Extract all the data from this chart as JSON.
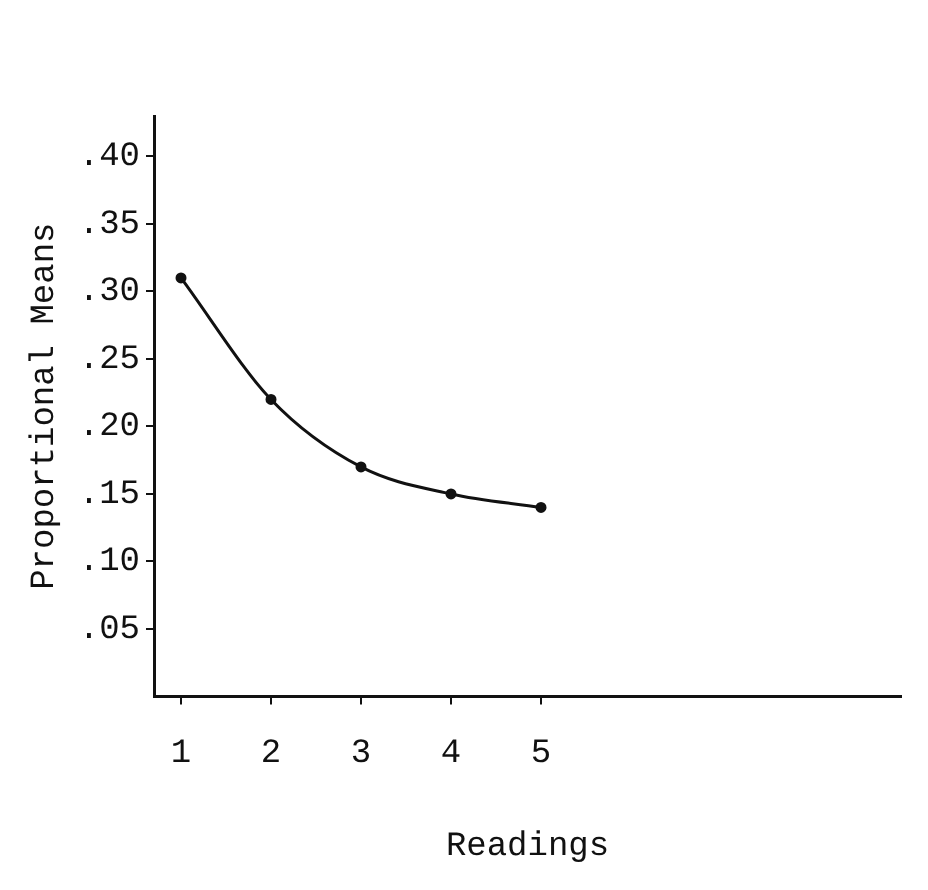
{
  "chart_data": {
    "type": "line",
    "xlabel": "Readings",
    "ylabel": "Proportional Means",
    "x": [
      1,
      2,
      3,
      4,
      5
    ],
    "series": [
      {
        "color": "#111111",
        "values": [
          0.31,
          0.22,
          0.17,
          0.15,
          0.14
        ]
      }
    ],
    "xlim": [
      0.7,
      9
    ],
    "xticks": [
      1,
      2,
      3,
      4,
      5
    ],
    "ylim": [
      0,
      0.43
    ],
    "yticks": [
      {
        "value": 0.05,
        "label": ".05"
      },
      {
        "value": 0.1,
        "label": ".10"
      },
      {
        "value": 0.15,
        "label": ".15"
      },
      {
        "value": 0.2,
        "label": ".20"
      },
      {
        "value": 0.25,
        "label": ".25"
      },
      {
        "value": 0.3,
        "label": ".30"
      },
      {
        "value": 0.35,
        "label": ".35"
      },
      {
        "value": 0.4,
        "label": ".40"
      }
    ],
    "grid": false,
    "legend": false,
    "marker": "circle",
    "line_style": "solid"
  }
}
